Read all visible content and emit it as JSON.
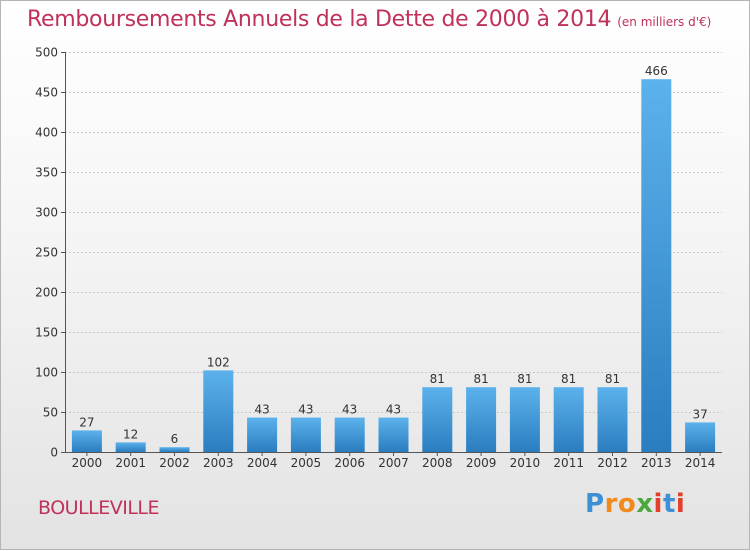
{
  "title": "Remboursements Annuels de la Dette de 2000 à 2014",
  "subtitle": "(en milliers d'€)",
  "place": "BOULLEVILLE",
  "logo": {
    "letters": [
      "P",
      "r",
      "o",
      "x",
      "i",
      "t",
      "i"
    ],
    "colors": [
      "#3d8fd6",
      "#f08a1c",
      "#f08a1c",
      "#4aa93c",
      "#e2402a",
      "#3d8fd6",
      "#e2402a"
    ]
  },
  "colors": {
    "bar_light": "#5cb2ec",
    "bar_dark": "#2a7dbf",
    "title": "#c0325a"
  },
  "chart_data": {
    "type": "bar",
    "categories": [
      "2000",
      "2001",
      "2002",
      "2003",
      "2004",
      "2005",
      "2006",
      "2007",
      "2008",
      "2009",
      "2010",
      "2011",
      "2012",
      "2013",
      "2014"
    ],
    "values": [
      27,
      12,
      6,
      102,
      43,
      43,
      43,
      43,
      81,
      81,
      81,
      81,
      81,
      466,
      37
    ],
    "data_labels": [
      "27",
      "12",
      "6",
      "102",
      "43",
      "43",
      "43",
      "43",
      "81",
      "81",
      "81",
      "81",
      "81",
      "466",
      "37"
    ],
    "yticks": [
      "0",
      "50",
      "100",
      "150",
      "200",
      "250",
      "300",
      "350",
      "400",
      "450",
      "500"
    ],
    "ylim": [
      0,
      500
    ],
    "grid": true
  }
}
